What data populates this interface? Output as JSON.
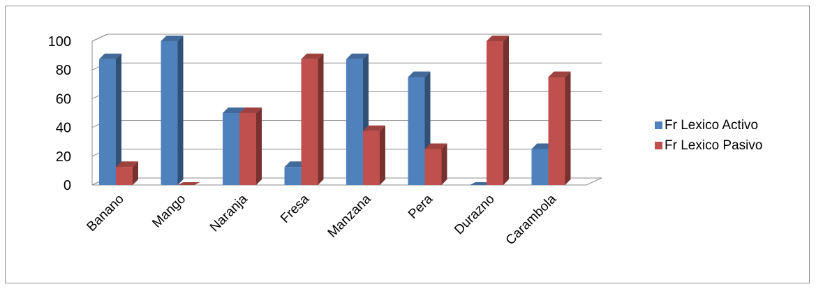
{
  "chart_data": {
    "type": "bar",
    "categories": [
      "Banano",
      "Mango",
      "Naranja",
      "Fresa",
      "Manzana",
      "Pera",
      "Durazno",
      "Carambola"
    ],
    "series": [
      {
        "name": "Fr Lexico Activo",
        "values": [
          87.5,
          100,
          50,
          12.5,
          87.5,
          75,
          0,
          25
        ]
      },
      {
        "name": "Fr Lexico Pasivo",
        "values": [
          12.5,
          0,
          50,
          87.5,
          37.5,
          25,
          100,
          75
        ]
      }
    ],
    "title": "",
    "xlabel": "",
    "ylabel": "",
    "ylim": [
      0,
      100
    ],
    "yticks": [
      "0",
      "20",
      "40",
      "60",
      "80",
      "100"
    ],
    "grid": true,
    "legend_position": "right",
    "style": "3d-clustered-column",
    "colors": {
      "Fr Lexico Activo": "#4f81bd",
      "Fr Lexico Pasivo": "#c0504d"
    }
  }
}
